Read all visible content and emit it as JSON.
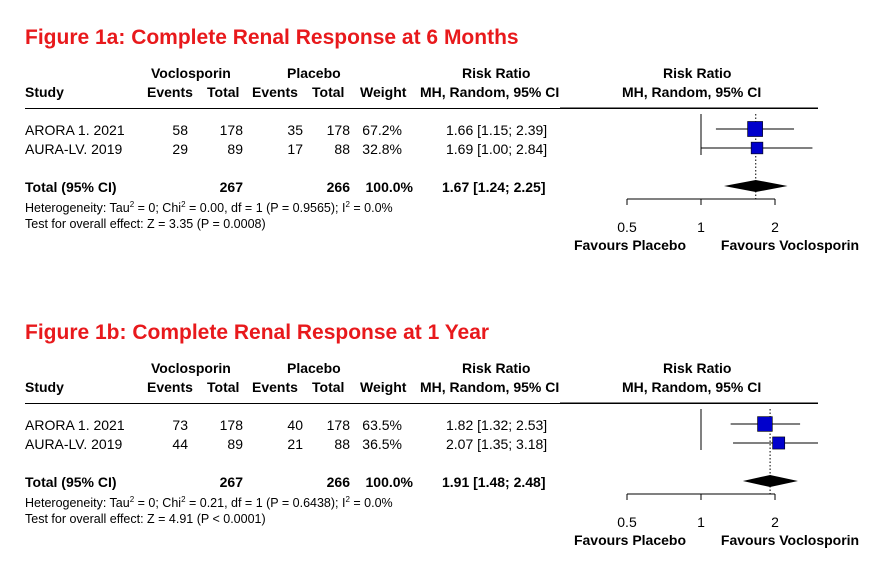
{
  "figures": [
    {
      "title": "Figure 1a: Complete Renal Response at 6 Months",
      "headers": {
        "study": "Study",
        "group1": "Voclosporin",
        "group2": "Placebo",
        "events": "Events",
        "total": "Total",
        "weight": "Weight",
        "rr_title": "Risk Ratio",
        "rr_method": "MH, Random, 95% CI"
      },
      "studies": [
        {
          "name": "ARORA 1. 2021",
          "ev1": "58",
          "tot1": "178",
          "ev2": "35",
          "tot2": "178",
          "weight": "67.2%",
          "ci": "1.66 [1.15; 2.39]"
        },
        {
          "name": "AURA-LV. 2019",
          "ev1": "29",
          "tot1": "89",
          "ev2": "17",
          "tot2": "88",
          "weight": "32.8%",
          "ci": "1.69 [1.00; 2.84]"
        }
      ],
      "total": {
        "label": "Total (95% CI)",
        "tot1": "267",
        "tot2": "266",
        "weight": "100.0%",
        "ci": "1.67 [1.24; 2.25]"
      },
      "heterogeneity": {
        "lead": "Heterogeneity: Tau",
        "sup1": "2",
        "mid": " = 0; Chi",
        "sup2": "2",
        "tail": " = 0.00, df = 1 (P = 0.9565); I",
        "sup3": "2",
        "end": " = 0.0%"
      },
      "overall": "Test for overall effect: Z = 3.35 (P = 0.0008)",
      "axis": {
        "ticks": [
          "0.5",
          "1",
          "2"
        ],
        "left_label": "Favours Placebo",
        "right_label": "Favours Voclosporin"
      }
    },
    {
      "title": "Figure 1b: Complete Renal Response at 1 Year",
      "headers": {
        "study": "Study",
        "group1": "Voclosporin",
        "group2": "Placebo",
        "events": "Events",
        "total": "Total",
        "weight": "Weight",
        "rr_title": "Risk Ratio",
        "rr_method": "MH, Random, 95% CI"
      },
      "studies": [
        {
          "name": "ARORA 1. 2021",
          "ev1": "73",
          "tot1": "178",
          "ev2": "40",
          "tot2": "178",
          "weight": "63.5%",
          "ci": "1.82 [1.32; 2.53]"
        },
        {
          "name": "AURA-LV. 2019",
          "ev1": "44",
          "tot1": "89",
          "ev2": "21",
          "tot2": "88",
          "weight": "36.5%",
          "ci": "2.07 [1.35; 3.18]"
        }
      ],
      "total": {
        "label": "Total (95% CI)",
        "tot1": "267",
        "tot2": "266",
        "weight": "100.0%",
        "ci": "1.91 [1.48; 2.48]"
      },
      "heterogeneity": {
        "lead": "Heterogeneity: Tau",
        "sup1": "2",
        "mid": " = 0; Chi",
        "sup2": "2",
        "tail": " = 0.21, df = 1 (P = 0.6438); I",
        "sup3": "2",
        "end": " = 0.0%"
      },
      "overall": "Test for overall effect: Z = 4.91 (P < 0.0001)",
      "axis": {
        "ticks": [
          "0.5",
          "1",
          "2"
        ],
        "left_label": "Favours Placebo",
        "right_label": "Favours Voclosporin"
      }
    }
  ],
  "chart_data": [
    {
      "type": "forest",
      "title": "Figure 1a: Complete Renal Response at 6 Months",
      "scale": "log",
      "x_ticks": [
        0.5,
        1,
        2
      ],
      "xlim": [
        0.5,
        2.84
      ],
      "colors": {
        "marker": "#0000cc",
        "summary": "#000000"
      },
      "studies": [
        {
          "name": "ARORA 1. 2021",
          "rr": 1.66,
          "lower": 1.15,
          "upper": 2.39,
          "weight": 67.2
        },
        {
          "name": "AURA-LV. 2019",
          "rr": 1.69,
          "lower": 1.0,
          "upper": 2.84,
          "weight": 32.8
        }
      ],
      "pooled": {
        "rr": 1.67,
        "lower": 1.24,
        "upper": 2.25
      }
    },
    {
      "type": "forest",
      "title": "Figure 1b: Complete Renal Response at 1 Year",
      "scale": "log",
      "x_ticks": [
        0.5,
        1,
        2
      ],
      "xlim": [
        0.5,
        3.18
      ],
      "colors": {
        "marker": "#0000cc",
        "summary": "#000000"
      },
      "studies": [
        {
          "name": "ARORA 1. 2021",
          "rr": 1.82,
          "lower": 1.32,
          "upper": 2.53,
          "weight": 63.5
        },
        {
          "name": "AURA-LV. 2019",
          "rr": 2.07,
          "lower": 1.35,
          "upper": 3.18,
          "weight": 36.5
        }
      ],
      "pooled": {
        "rr": 1.91,
        "lower": 1.48,
        "upper": 2.48
      }
    }
  ]
}
